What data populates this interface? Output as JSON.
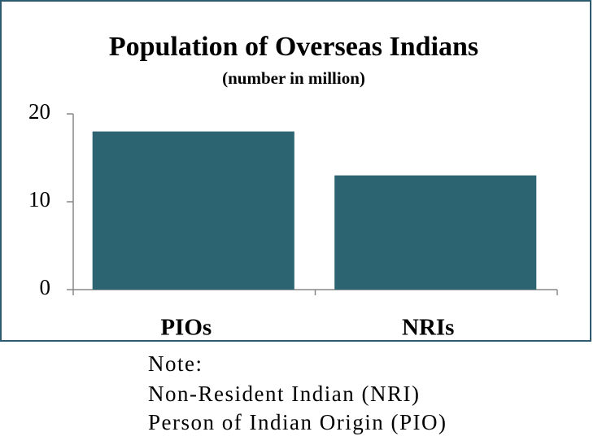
{
  "chart_data": {
    "type": "bar",
    "title": "Population of Overseas Indians",
    "subtitle": "(number in million)",
    "categories": [
      "PIOs",
      "NRIs"
    ],
    "values": [
      18,
      13
    ],
    "color": "#2c6472",
    "ylim": [
      0,
      20
    ],
    "yticks": [
      0,
      10,
      20
    ],
    "grid": false
  },
  "notes": [
    "Note:",
    "Non-Resident Indian (NRI)",
    "Person of Indian Origin (PIO)"
  ]
}
